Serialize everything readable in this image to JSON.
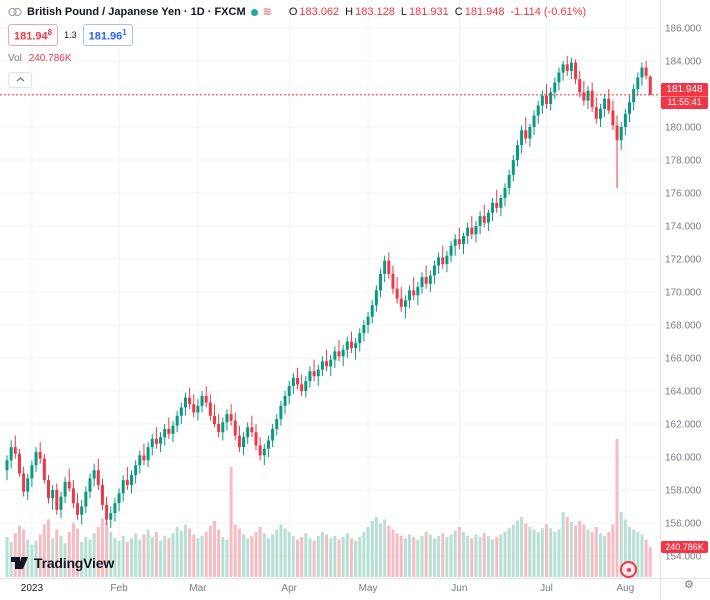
{
  "colors": {
    "up": "#089981",
    "down": "#f23645",
    "vol_up": "#b7dfd4",
    "vol_down": "#f6bcc1",
    "accent_blue": "#2962ff",
    "axis_text": "#787b86",
    "grid": "#f0f3fa",
    "separator": "#e0e3eb",
    "badge_red": "#f23645"
  },
  "header": {
    "symbol_title": "British Pound / Japanese Yen · 1D · FXCM",
    "ohlc": {
      "o_label": "O",
      "o_value": "183.062",
      "h_label": "H",
      "h_value": "183.128",
      "l_label": "L",
      "l_value": "181.931",
      "c_label": "C",
      "c_value": "181.948",
      "change": "-1.114 (-0.61%)"
    },
    "sell_price_main": "181.94",
    "sell_price_sup": "8",
    "spread": "1.3",
    "buy_price_main": "181.96",
    "buy_price_sup": "1",
    "vol_label": "Vol",
    "vol_value": "240.786K"
  },
  "price_axis": {
    "labels": [
      [
        "186.000",
        186
      ],
      [
        "184.000",
        184
      ],
      [
        "182.000",
        182
      ],
      [
        "180.000",
        180
      ],
      [
        "178.000",
        178
      ],
      [
        "176.000",
        176
      ],
      [
        "174.000",
        174
      ],
      [
        "172.000",
        172
      ],
      [
        "170.000",
        170
      ],
      [
        "168.000",
        168
      ],
      [
        "166.000",
        166
      ],
      [
        "164.000",
        164
      ],
      [
        "162.000",
        162
      ],
      [
        "160.000",
        160
      ],
      [
        "158.000",
        158
      ],
      [
        "156.000",
        156
      ],
      [
        "154.000",
        154
      ]
    ],
    "current_badge": {
      "price": "181.948",
      "countdown": "11:55:41"
    },
    "volume_badge": "240.786K"
  },
  "time_axis": {
    "labels": [
      [
        "2023",
        6,
        true
      ],
      [
        "Feb",
        27,
        false
      ],
      [
        "Mar",
        46,
        false
      ],
      [
        "Apr",
        68,
        false
      ],
      [
        "May",
        87,
        false
      ],
      [
        "Jun",
        109,
        false
      ],
      [
        "Jul",
        130,
        false
      ],
      [
        "Aug",
        149,
        false
      ]
    ]
  },
  "footer": {
    "logo_text": "TradingView"
  },
  "chart_data": {
    "type": "candlestick",
    "title": "British Pound / Japanese Yen",
    "interval": "1D",
    "exchange": "FXCM",
    "ohlc_last": {
      "open": 183.062,
      "high": 183.128,
      "low": 181.931,
      "close": 181.948,
      "change": -1.114,
      "change_pct": -0.61
    },
    "current_price": 181.948,
    "session_countdown": "11:55:41",
    "last_volume_display": "240.786K",
    "ylim": [
      152.7,
      187.7
    ],
    "volume_unit": "K",
    "legend_position": "top-left",
    "grid": true,
    "months": [
      "2023",
      "Feb",
      "Mar",
      "Apr",
      "May",
      "Jun",
      "Jul",
      "Aug"
    ],
    "candles": [
      [
        159.2,
        160.1,
        158.6,
        159.8,
        320
      ],
      [
        159.8,
        161.0,
        159.3,
        160.6,
        280
      ],
      [
        160.6,
        161.3,
        159.9,
        160.2,
        350
      ],
      [
        160.2,
        160.5,
        158.8,
        159.0,
        410
      ],
      [
        159.0,
        159.4,
        157.6,
        157.9,
        380
      ],
      [
        157.9,
        159.0,
        157.4,
        158.7,
        300
      ],
      [
        158.7,
        159.8,
        158.2,
        159.5,
        260
      ],
      [
        159.5,
        160.6,
        159.1,
        160.3,
        290
      ],
      [
        160.3,
        160.9,
        159.6,
        159.9,
        340
      ],
      [
        159.9,
        160.2,
        158.4,
        158.6,
        420
      ],
      [
        158.6,
        158.9,
        157.2,
        157.5,
        460
      ],
      [
        157.5,
        158.3,
        156.8,
        158.0,
        310
      ],
      [
        158.0,
        158.4,
        156.5,
        156.8,
        380
      ],
      [
        156.8,
        157.9,
        156.3,
        157.6,
        330
      ],
      [
        157.6,
        158.8,
        157.2,
        158.5,
        270
      ],
      [
        158.5,
        159.3,
        157.9,
        158.1,
        360
      ],
      [
        158.1,
        158.6,
        156.9,
        157.2,
        430
      ],
      [
        157.2,
        157.8,
        156.2,
        156.5,
        390
      ],
      [
        156.5,
        157.4,
        155.9,
        157.0,
        280
      ],
      [
        157.0,
        158.2,
        156.6,
        157.9,
        320
      ],
      [
        157.9,
        159.0,
        157.5,
        158.7,
        300
      ],
      [
        158.7,
        159.6,
        158.2,
        159.2,
        350
      ],
      [
        159.2,
        159.9,
        158.0,
        158.3,
        400
      ],
      [
        158.3,
        158.7,
        156.8,
        157.1,
        470
      ],
      [
        157.1,
        157.6,
        155.9,
        156.2,
        440
      ],
      [
        156.2,
        157.0,
        155.7,
        156.6,
        360
      ],
      [
        156.6,
        157.5,
        156.1,
        157.2,
        310
      ],
      [
        157.2,
        158.1,
        156.7,
        157.8,
        290
      ],
      [
        157.8,
        158.9,
        157.3,
        158.6,
        330
      ],
      [
        158.6,
        159.4,
        158.0,
        158.3,
        280
      ],
      [
        158.3,
        159.2,
        157.8,
        158.9,
        310
      ],
      [
        158.9,
        159.8,
        158.4,
        159.5,
        350
      ],
      [
        159.5,
        160.4,
        159.0,
        160.1,
        300
      ],
      [
        160.1,
        160.8,
        159.5,
        159.8,
        340
      ],
      [
        159.8,
        160.9,
        159.4,
        160.6,
        380
      ],
      [
        160.6,
        161.4,
        160.1,
        161.1,
        320
      ],
      [
        161.1,
        161.8,
        160.5,
        160.8,
        360
      ],
      [
        160.8,
        161.5,
        160.3,
        161.2,
        290
      ],
      [
        161.2,
        162.0,
        160.7,
        161.7,
        330
      ],
      [
        161.7,
        162.4,
        161.1,
        161.4,
        310
      ],
      [
        161.4,
        162.2,
        160.9,
        161.9,
        350
      ],
      [
        161.9,
        162.8,
        161.5,
        162.5,
        400
      ],
      [
        162.5,
        163.3,
        162.0,
        163.0,
        370
      ],
      [
        163.0,
        163.9,
        162.5,
        163.6,
        420
      ],
      [
        163.6,
        164.2,
        162.9,
        163.2,
        390
      ],
      [
        163.2,
        163.8,
        162.4,
        162.7,
        340
      ],
      [
        162.7,
        163.5,
        162.2,
        163.1,
        310
      ],
      [
        163.1,
        164.0,
        162.7,
        163.7,
        330
      ],
      [
        163.7,
        164.3,
        163.0,
        163.3,
        360
      ],
      [
        163.3,
        163.8,
        162.2,
        162.5,
        410
      ],
      [
        162.5,
        163.2,
        161.8,
        162.0,
        450
      ],
      [
        162.0,
        162.6,
        161.2,
        161.5,
        380
      ],
      [
        161.5,
        162.4,
        161.0,
        162.1,
        320
      ],
      [
        162.1,
        162.9,
        161.6,
        162.6,
        300
      ],
      [
        162.6,
        163.2,
        161.9,
        162.2,
        880
      ],
      [
        162.2,
        162.7,
        161.0,
        161.3,
        420
      ],
      [
        161.3,
        161.9,
        160.3,
        160.6,
        390
      ],
      [
        160.6,
        161.5,
        160.1,
        161.2,
        340
      ],
      [
        161.2,
        162.1,
        160.8,
        161.8,
        310
      ],
      [
        161.8,
        162.5,
        161.2,
        161.5,
        330
      ],
      [
        161.5,
        162.0,
        160.4,
        160.7,
        360
      ],
      [
        160.7,
        161.2,
        159.8,
        160.1,
        400
      ],
      [
        160.1,
        160.8,
        159.5,
        160.5,
        350
      ],
      [
        160.5,
        161.3,
        160.0,
        161.0,
        310
      ],
      [
        161.0,
        162.0,
        160.6,
        161.7,
        340
      ],
      [
        161.7,
        162.6,
        161.3,
        162.3,
        380
      ],
      [
        162.3,
        163.4,
        161.9,
        163.1,
        420
      ],
      [
        163.1,
        164.0,
        162.6,
        163.7,
        390
      ],
      [
        163.7,
        164.6,
        163.2,
        164.3,
        360
      ],
      [
        164.3,
        165.1,
        163.8,
        164.8,
        330
      ],
      [
        164.8,
        165.4,
        164.1,
        164.4,
        300
      ],
      [
        164.4,
        165.0,
        163.7,
        164.0,
        320
      ],
      [
        164.0,
        164.9,
        163.6,
        164.6,
        350
      ],
      [
        164.6,
        165.5,
        164.2,
        165.2,
        310
      ],
      [
        165.2,
        165.9,
        164.6,
        164.9,
        290
      ],
      [
        164.9,
        165.6,
        164.3,
        165.3,
        330
      ],
      [
        165.3,
        166.1,
        164.9,
        165.8,
        360
      ],
      [
        165.8,
        166.5,
        165.2,
        165.5,
        340
      ],
      [
        165.5,
        166.2,
        164.9,
        165.9,
        310
      ],
      [
        165.9,
        166.7,
        165.4,
        166.4,
        330
      ],
      [
        166.4,
        167.1,
        165.8,
        166.1,
        300
      ],
      [
        166.1,
        166.8,
        165.5,
        166.5,
        320
      ],
      [
        166.5,
        167.3,
        166.0,
        167.0,
        350
      ],
      [
        167.0,
        167.6,
        166.3,
        166.6,
        310
      ],
      [
        166.6,
        167.2,
        165.9,
        166.9,
        290
      ],
      [
        166.9,
        167.8,
        166.4,
        167.5,
        320
      ],
      [
        167.5,
        168.3,
        167.0,
        168.0,
        360
      ],
      [
        168.0,
        168.8,
        167.5,
        168.5,
        400
      ],
      [
        168.5,
        169.5,
        168.1,
        169.2,
        450
      ],
      [
        169.2,
        170.4,
        168.8,
        170.1,
        480
      ],
      [
        170.1,
        171.4,
        169.7,
        171.1,
        430
      ],
      [
        171.1,
        172.2,
        170.6,
        171.9,
        460
      ],
      [
        171.9,
        172.4,
        170.8,
        171.1,
        410
      ],
      [
        171.1,
        171.6,
        169.9,
        170.2,
        380
      ],
      [
        170.2,
        170.9,
        169.3,
        169.6,
        350
      ],
      [
        169.6,
        170.3,
        168.8,
        169.1,
        330
      ],
      [
        169.1,
        169.8,
        168.4,
        169.5,
        310
      ],
      [
        169.5,
        170.4,
        169.0,
        170.1,
        340
      ],
      [
        170.1,
        170.9,
        169.5,
        169.8,
        320
      ],
      [
        169.8,
        170.6,
        169.2,
        170.3,
        300
      ],
      [
        170.3,
        171.2,
        169.9,
        170.9,
        330
      ],
      [
        170.9,
        171.6,
        170.2,
        170.5,
        360
      ],
      [
        170.5,
        171.3,
        170.0,
        171.0,
        340
      ],
      [
        171.0,
        171.9,
        170.5,
        171.6,
        310
      ],
      [
        171.6,
        172.4,
        171.1,
        172.1,
        330
      ],
      [
        172.1,
        172.8,
        171.4,
        171.7,
        350
      ],
      [
        171.7,
        172.5,
        171.2,
        172.2,
        320
      ],
      [
        172.2,
        173.1,
        171.8,
        172.8,
        340
      ],
      [
        172.8,
        173.5,
        172.2,
        173.2,
        370
      ],
      [
        173.2,
        173.9,
        172.6,
        172.9,
        400
      ],
      [
        172.9,
        173.6,
        172.3,
        173.4,
        360
      ],
      [
        173.4,
        174.2,
        172.9,
        173.9,
        330
      ],
      [
        173.9,
        174.6,
        173.2,
        173.5,
        310
      ],
      [
        173.5,
        174.3,
        173.0,
        174.0,
        340
      ],
      [
        174.0,
        174.9,
        173.5,
        174.6,
        320
      ],
      [
        174.6,
        175.3,
        173.9,
        174.2,
        350
      ],
      [
        174.2,
        175.0,
        173.7,
        174.8,
        330
      ],
      [
        174.8,
        175.7,
        174.3,
        175.4,
        300
      ],
      [
        175.4,
        176.2,
        174.8,
        175.1,
        320
      ],
      [
        175.1,
        175.9,
        174.6,
        175.7,
        340
      ],
      [
        175.7,
        176.6,
        175.2,
        176.3,
        360
      ],
      [
        176.3,
        177.4,
        175.9,
        177.1,
        390
      ],
      [
        177.1,
        178.3,
        176.7,
        178.0,
        420
      ],
      [
        178.0,
        179.2,
        177.6,
        178.9,
        450
      ],
      [
        178.9,
        180.1,
        178.4,
        179.8,
        480
      ],
      [
        179.8,
        180.6,
        179.0,
        179.3,
        430
      ],
      [
        179.3,
        180.2,
        178.8,
        180.0,
        400
      ],
      [
        180.0,
        181.0,
        179.5,
        180.7,
        380
      ],
      [
        180.7,
        181.6,
        180.2,
        181.3,
        360
      ],
      [
        181.3,
        182.2,
        180.8,
        181.9,
        390
      ],
      [
        181.9,
        182.6,
        181.1,
        181.4,
        420
      ],
      [
        181.4,
        182.4,
        181.0,
        182.1,
        390
      ],
      [
        182.1,
        183.0,
        181.7,
        182.7,
        360
      ],
      [
        182.7,
        183.6,
        182.2,
        183.3,
        380
      ],
      [
        183.3,
        184.0,
        182.8,
        183.8,
        520
      ],
      [
        183.8,
        184.3,
        183.1,
        183.4,
        480
      ],
      [
        183.4,
        184.2,
        182.9,
        183.9,
        440
      ],
      [
        183.9,
        184.1,
        182.6,
        182.9,
        410
      ],
      [
        182.9,
        183.4,
        181.8,
        182.1,
        450
      ],
      [
        182.1,
        182.8,
        181.3,
        181.6,
        420
      ],
      [
        181.6,
        182.5,
        181.1,
        182.2,
        380
      ],
      [
        182.2,
        182.7,
        180.9,
        181.2,
        360
      ],
      [
        181.2,
        181.8,
        180.2,
        180.5,
        400
      ],
      [
        180.5,
        181.4,
        180.0,
        181.1,
        350
      ],
      [
        181.1,
        182.0,
        180.6,
        181.7,
        330
      ],
      [
        181.7,
        182.3,
        180.8,
        181.0,
        360
      ],
      [
        181.0,
        181.6,
        179.8,
        180.1,
        420
      ],
      [
        180.1,
        180.7,
        176.3,
        179.2,
        1104
      ],
      [
        179.2,
        180.3,
        178.6,
        180.0,
        520
      ],
      [
        180.0,
        181.1,
        179.5,
        180.8,
        460
      ],
      [
        180.8,
        181.9,
        180.3,
        181.5,
        400
      ],
      [
        181.5,
        182.6,
        181.0,
        182.3,
        380
      ],
      [
        182.3,
        183.3,
        181.9,
        183.0,
        360
      ],
      [
        183.0,
        183.9,
        182.5,
        183.6,
        340
      ],
      [
        183.6,
        184.0,
        182.9,
        183.1,
        300
      ],
      [
        183.062,
        183.128,
        181.931,
        181.948,
        241
      ]
    ]
  }
}
